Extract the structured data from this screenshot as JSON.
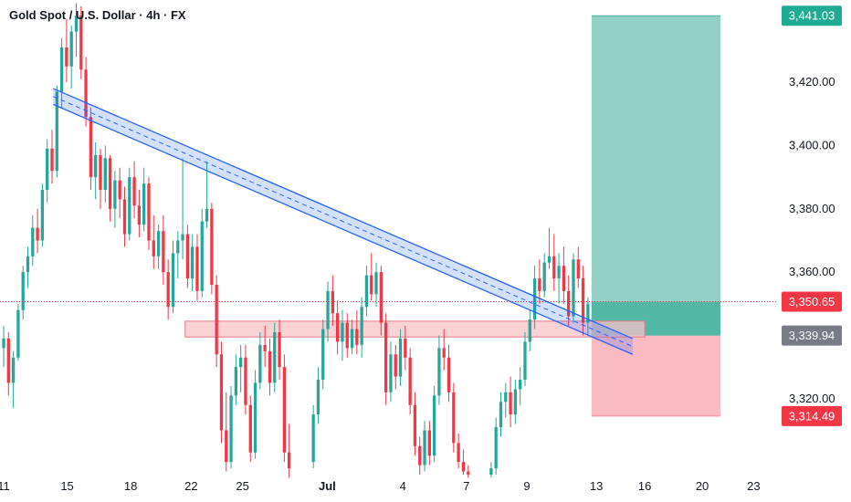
{
  "header": {
    "symbol_title": "Gold Spot / U.S. Dollar · 4h · FX"
  },
  "colors": {
    "up": "#26a69a",
    "down": "#f23645",
    "channel": "#2962ff",
    "support_zone": "#f7c3c8",
    "target_zone": "#8dcfc4",
    "stop_zone": "#f9b6be",
    "current_price_line": "#f23645",
    "entry_badge": "#787b86"
  },
  "chart_data": {
    "type": "candlestick",
    "instrument": "Gold Spot / U.S. Dollar",
    "timeframe": "4h",
    "ylim": [
      3296,
      3446
    ],
    "xlim": [
      11,
      23.5
    ],
    "y_ticks": [
      {
        "value": 3420,
        "label": "3,420.00"
      },
      {
        "value": 3400,
        "label": "3,400.00"
      },
      {
        "value": 3380,
        "label": "3,380.00"
      },
      {
        "value": 3360,
        "label": "3,360.00"
      },
      {
        "value": 3320,
        "label": "3,320.00"
      }
    ],
    "x_ticks": [
      {
        "pos": 11,
        "label": "11"
      },
      {
        "pos": 12.05,
        "label": "15"
      },
      {
        "pos": 13.1,
        "label": "18"
      },
      {
        "pos": 14.1,
        "label": "22"
      },
      {
        "pos": 14.95,
        "label": "25"
      },
      {
        "pos": 16.35,
        "label": "Jul"
      },
      {
        "pos": 17.6,
        "label": "4"
      },
      {
        "pos": 18.65,
        "label": "7"
      },
      {
        "pos": 19.65,
        "label": "9"
      },
      {
        "pos": 20.8,
        "label": "13"
      },
      {
        "pos": 21.6,
        "label": "16"
      },
      {
        "pos": 22.55,
        "label": "20"
      },
      {
        "pos": 23.4,
        "label": "23"
      }
    ],
    "candles": [
      [
        11.0,
        3336,
        3343,
        3330,
        3339
      ],
      [
        11.08,
        3339,
        3341,
        3321,
        3325
      ],
      [
        11.16,
        3325,
        3335,
        3317,
        3333
      ],
      [
        11.24,
        3333,
        3350,
        3332,
        3348
      ],
      [
        11.32,
        3348,
        3362,
        3345,
        3360
      ],
      [
        11.4,
        3360,
        3368,
        3355,
        3365
      ],
      [
        11.48,
        3365,
        3378,
        3362,
        3374
      ],
      [
        11.56,
        3374,
        3380,
        3366,
        3370
      ],
      [
        11.64,
        3370,
        3388,
        3368,
        3386
      ],
      [
        11.72,
        3386,
        3402,
        3382,
        3399
      ],
      [
        11.8,
        3399,
        3405,
        3388,
        3392
      ],
      [
        11.88,
        3392,
        3419,
        3390,
        3417
      ],
      [
        11.96,
        3417,
        3434,
        3412,
        3431
      ],
      [
        12.04,
        3431,
        3440,
        3420,
        3425
      ],
      [
        12.12,
        3425,
        3438,
        3418,
        3436
      ],
      [
        12.2,
        3436,
        3445,
        3428,
        3441
      ],
      [
        12.28,
        3441,
        3444,
        3421,
        3424
      ],
      [
        12.36,
        3424,
        3428,
        3406,
        3409
      ],
      [
        12.44,
        3409,
        3412,
        3386,
        3390
      ],
      [
        12.52,
        3390,
        3401,
        3383,
        3397
      ],
      [
        12.6,
        3397,
        3399,
        3380,
        3386
      ],
      [
        12.68,
        3386,
        3400,
        3382,
        3396
      ],
      [
        12.76,
        3396,
        3397,
        3376,
        3380
      ],
      [
        12.84,
        3380,
        3392,
        3374,
        3389
      ],
      [
        12.92,
        3389,
        3393,
        3377,
        3383
      ],
      [
        13.0,
        3383,
        3387,
        3368,
        3372
      ],
      [
        13.08,
        3372,
        3393,
        3370,
        3390
      ],
      [
        13.16,
        3390,
        3395,
        3377,
        3381
      ],
      [
        13.24,
        3381,
        3386,
        3371,
        3375
      ],
      [
        13.32,
        3375,
        3393,
        3373,
        3388
      ],
      [
        13.4,
        3388,
        3390,
        3367,
        3370
      ],
      [
        13.48,
        3370,
        3378,
        3361,
        3365
      ],
      [
        13.56,
        3365,
        3375,
        3361,
        3373
      ],
      [
        13.64,
        3373,
        3378,
        3356,
        3360
      ],
      [
        13.72,
        3360,
        3364,
        3345,
        3349
      ],
      [
        13.8,
        3349,
        3370,
        3347,
        3366
      ],
      [
        13.88,
        3366,
        3373,
        3358,
        3370
      ],
      [
        13.96,
        3370,
        3396,
        3364,
        3372
      ],
      [
        14.04,
        3372,
        3375,
        3355,
        3358
      ],
      [
        14.12,
        3358,
        3372,
        3354,
        3368
      ],
      [
        14.2,
        3368,
        3372,
        3351,
        3354
      ],
      [
        14.28,
        3354,
        3380,
        3352,
        3376
      ],
      [
        14.36,
        3376,
        3395,
        3374,
        3380
      ],
      [
        14.44,
        3380,
        3382,
        3353,
        3356
      ],
      [
        14.52,
        3356,
        3359,
        3330,
        3334
      ],
      [
        14.6,
        3334,
        3338,
        3306,
        3310
      ],
      [
        14.68,
        3310,
        3322,
        3297,
        3300
      ],
      [
        14.76,
        3300,
        3324,
        3298,
        3321
      ],
      [
        14.84,
        3321,
        3334,
        3318,
        3330
      ],
      [
        14.92,
        3330,
        3337,
        3322,
        3333
      ],
      [
        15.0,
        3333,
        3337,
        3315,
        3318
      ],
      [
        15.08,
        3318,
        3321,
        3300,
        3303
      ],
      [
        15.16,
        3303,
        3329,
        3301,
        3325
      ],
      [
        15.24,
        3325,
        3341,
        3323,
        3337
      ],
      [
        15.32,
        3337,
        3343,
        3330,
        3335
      ],
      [
        15.4,
        3335,
        3339,
        3321,
        3325
      ],
      [
        15.48,
        3325,
        3344,
        3322,
        3341
      ],
      [
        15.56,
        3341,
        3345,
        3326,
        3330
      ],
      [
        15.64,
        3330,
        3334,
        3300,
        3303
      ],
      [
        15.72,
        3303,
        3312,
        3295,
        3298
      ],
      [
        16.12,
        3300,
        3318,
        3298,
        3315
      ],
      [
        16.2,
        3315,
        3330,
        3312,
        3326
      ],
      [
        16.28,
        3326,
        3345,
        3323,
        3342
      ],
      [
        16.36,
        3342,
        3357,
        3338,
        3354
      ],
      [
        16.44,
        3354,
        3359,
        3343,
        3347
      ],
      [
        16.52,
        3347,
        3351,
        3334,
        3338
      ],
      [
        16.6,
        3338,
        3348,
        3332,
        3344
      ],
      [
        16.68,
        3344,
        3347,
        3333,
        3336
      ],
      [
        16.76,
        3336,
        3345,
        3334,
        3342
      ],
      [
        16.84,
        3342,
        3348,
        3334,
        3337
      ],
      [
        16.92,
        3337,
        3352,
        3333,
        3349
      ],
      [
        17.0,
        3349,
        3362,
        3346,
        3359
      ],
      [
        17.08,
        3359,
        3366,
        3351,
        3353
      ],
      [
        17.16,
        3353,
        3363,
        3349,
        3360
      ],
      [
        17.24,
        3360,
        3362,
        3340,
        3344
      ],
      [
        17.32,
        3344,
        3347,
        3318,
        3322
      ],
      [
        17.4,
        3322,
        3338,
        3319,
        3334
      ],
      [
        17.48,
        3334,
        3337,
        3323,
        3327
      ],
      [
        17.56,
        3327,
        3342,
        3324,
        3339
      ],
      [
        17.64,
        3339,
        3343,
        3329,
        3333
      ],
      [
        17.72,
        3333,
        3336,
        3315,
        3318
      ],
      [
        17.8,
        3318,
        3322,
        3302,
        3305
      ],
      [
        17.88,
        3305,
        3308,
        3296,
        3299
      ],
      [
        17.96,
        3299,
        3313,
        3297,
        3310
      ],
      [
        18.04,
        3310,
        3313,
        3299,
        3302
      ],
      [
        18.12,
        3302,
        3324,
        3300,
        3321
      ],
      [
        18.2,
        3321,
        3340,
        3318,
        3336
      ],
      [
        18.28,
        3336,
        3342,
        3329,
        3333
      ],
      [
        18.36,
        3333,
        3337,
        3319,
        3322
      ],
      [
        18.44,
        3322,
        3325,
        3303,
        3306
      ],
      [
        18.52,
        3306,
        3309,
        3298,
        3300
      ],
      [
        18.6,
        3300,
        3304,
        3296,
        3297
      ],
      [
        18.68,
        3297,
        3299,
        3295,
        3296
      ],
      [
        19.06,
        3296,
        3300,
        3295,
        3298
      ],
      [
        19.14,
        3298,
        3314,
        3296,
        3311
      ],
      [
        19.22,
        3311,
        3322,
        3308,
        3319
      ],
      [
        19.3,
        3319,
        3325,
        3314,
        3322
      ],
      [
        19.38,
        3322,
        3327,
        3311,
        3315
      ],
      [
        19.46,
        3315,
        3326,
        3312,
        3323
      ],
      [
        19.54,
        3323,
        3330,
        3318,
        3326
      ],
      [
        19.62,
        3326,
        3341,
        3324,
        3338
      ],
      [
        19.7,
        3338,
        3348,
        3335,
        3345
      ],
      [
        19.78,
        3345,
        3362,
        3342,
        3358
      ],
      [
        19.86,
        3358,
        3364,
        3350,
        3354
      ],
      [
        19.94,
        3354,
        3366,
        3352,
        3363
      ],
      [
        20.02,
        3363,
        3374,
        3361,
        3365
      ],
      [
        20.1,
        3365,
        3372,
        3354,
        3358
      ],
      [
        20.18,
        3358,
        3366,
        3350,
        3362
      ],
      [
        20.26,
        3362,
        3368,
        3350,
        3354
      ],
      [
        20.34,
        3354,
        3359,
        3343,
        3346
      ],
      [
        20.42,
        3346,
        3366,
        3344,
        3364
      ],
      [
        20.5,
        3364,
        3368,
        3355,
        3358
      ],
      [
        20.58,
        3358,
        3362,
        3340,
        3344
      ],
      [
        20.66,
        3344,
        3352,
        3340,
        3350
      ]
    ],
    "channel": {
      "line_upper": {
        "x1": 11.82,
        "y1": 3418,
        "x2": 21.4,
        "y2": 3339
      },
      "line_lower": {
        "x1": 11.82,
        "y1": 3413,
        "x2": 21.4,
        "y2": 3334
      },
      "midline": {
        "x1": 11.82,
        "y1": 3415.5,
        "x2": 21.4,
        "y2": 3336.5
      }
    },
    "support_zone": {
      "x1": 14.0,
      "x2": 21.6,
      "y1": 3339.5,
      "y2": 3344.5
    },
    "position": {
      "x1": 20.72,
      "x2": 22.85,
      "target": 3441.03,
      "entry": 3339.94,
      "stop": 3314.49,
      "filled_to": 3350.65
    },
    "current_price": 3350.65,
    "price_labels": [
      {
        "value": 3441.03,
        "label": "3,441.03",
        "color": "#22ab94"
      },
      {
        "value": 3350.65,
        "label": "3,350.65",
        "color": "#f23645"
      },
      {
        "value": 3339.94,
        "label": "3,339.94",
        "color": "#787b86"
      },
      {
        "value": 3314.49,
        "label": "3,314.49",
        "color": "#f23645"
      }
    ]
  }
}
